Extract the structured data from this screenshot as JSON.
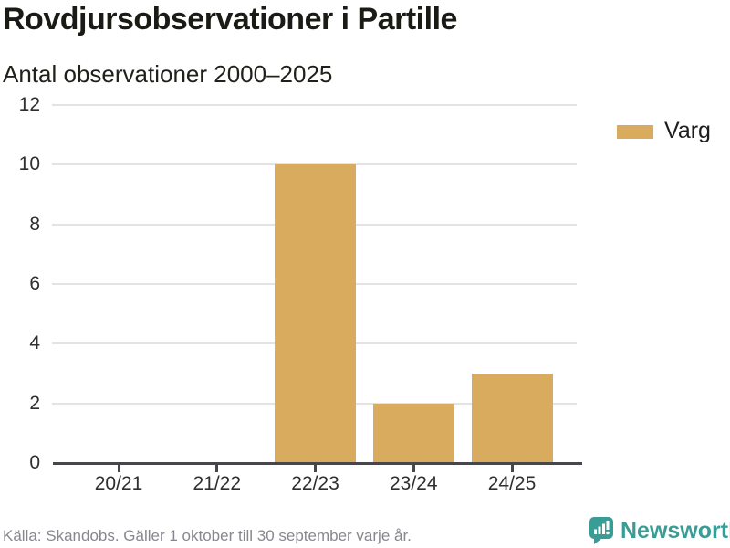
{
  "header": {
    "title": "Rovdjursobservationer i Partille",
    "subtitle": "Antal observationer 2000–2025"
  },
  "legend": {
    "items": [
      {
        "label": "Varg",
        "color": "#d8ab5e"
      }
    ]
  },
  "chart_data": {
    "type": "bar",
    "title": "Rovdjursobservationer i Partille",
    "subtitle": "Antal observationer 2000–2025",
    "categories": [
      "20/21",
      "21/22",
      "22/23",
      "23/24",
      "24/25"
    ],
    "series": [
      {
        "name": "Varg",
        "color": "#d8ab5e",
        "values": [
          0,
          0,
          10,
          2,
          3
        ]
      }
    ],
    "xlabel": "",
    "ylabel": "",
    "ylim": [
      0,
      12
    ],
    "yticks": [
      0,
      2,
      4,
      6,
      8,
      10,
      12
    ],
    "grid": true,
    "legend_position": "top-right"
  },
  "footer": {
    "source": "Källa: Skandobs. Gäller 1 oktober till 30 september varje år.",
    "brand": {
      "name": "Newsworthy",
      "color": "#3a9d95",
      "icon": "bar-chart-speech-bubble-icon"
    }
  },
  "colors": {
    "bar": "#d8ab5e",
    "grid": "#e3e3e3",
    "axis": "#47474b",
    "title_text": "#1b1b15",
    "axis_text": "#2f2f2f",
    "muted_text": "#87878f",
    "brand_teal": "#3a9d95"
  }
}
